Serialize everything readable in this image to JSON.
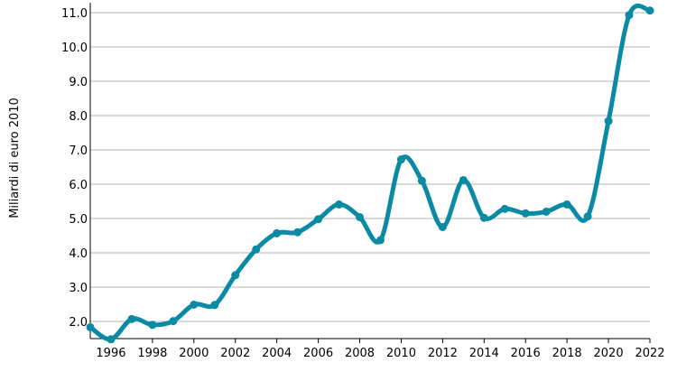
{
  "chart_data": {
    "type": "line",
    "title": "",
    "xlabel": "",
    "ylabel": "Miliardi di euro 2010",
    "xlim": [
      1995,
      2022
    ],
    "ylim": [
      1.4,
      11.2
    ],
    "x_ticks": [
      1996,
      1998,
      2000,
      2002,
      2004,
      2006,
      2008,
      2010,
      2012,
      2014,
      2016,
      2018,
      2020,
      2022
    ],
    "y_ticks": [
      "2.0",
      "3.0",
      "4.0",
      "5.0",
      "6.0",
      "7.0",
      "8.0",
      "9.0",
      "10.0",
      "11.0"
    ],
    "grid": "horizontal",
    "legend": "none",
    "color": "#0a8aa3",
    "x": [
      1995,
      1996,
      1997,
      1998,
      1999,
      2000,
      2001,
      2002,
      2003,
      2004,
      2005,
      2006,
      2007,
      2008,
      2009,
      2010,
      2011,
      2012,
      2013,
      2014,
      2015,
      2016,
      2017,
      2018,
      2019,
      2020,
      2021,
      2022
    ],
    "values": [
      1.83,
      1.48,
      2.07,
      1.9,
      2.01,
      2.49,
      2.48,
      3.35,
      4.1,
      4.57,
      4.6,
      4.98,
      5.41,
      5.04,
      4.37,
      6.72,
      6.1,
      4.75,
      6.12,
      5.02,
      5.28,
      5.15,
      5.2,
      5.41,
      5.06,
      7.84,
      10.93,
      11.06
    ]
  }
}
